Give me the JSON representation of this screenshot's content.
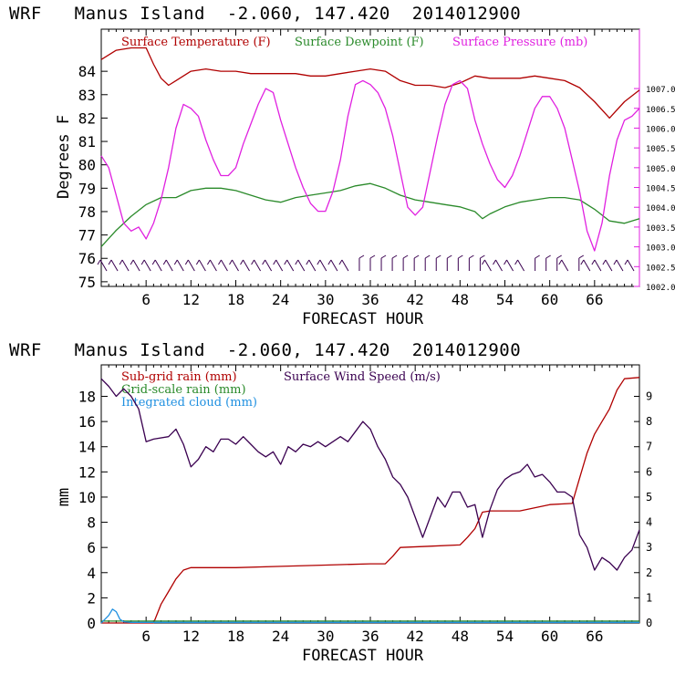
{
  "panel1": {
    "title": "WRF   Manus Island  -2.060, 147.420  2014012900",
    "xlabel": "FORECAST HOUR",
    "ylabel": "Degrees F",
    "legend": {
      "temperature": "Surface Temperature (F)",
      "dewpoint": "Surface Dewpoint (F)",
      "pressure": "Surface Pressure (mb)"
    }
  },
  "panel2": {
    "title": "WRF   Manus Island  -2.060, 147.420  2014012900",
    "xlabel": "FORECAST HOUR",
    "ylabel": "mm",
    "legend": {
      "subgrid": "Sub-grid rain (mm)",
      "gridscale": "Grid-scale rain (mm)",
      "cloud": "Integrated cloud (mm)",
      "wind": "Surface Wind Speed (m/s)"
    }
  },
  "colors": {
    "temperature": "#b00000",
    "dewpoint": "#2a8a2a",
    "pressure": "#e020e0",
    "wind_barbs": "#3a0050",
    "subgrid": "#b00000",
    "gridscale": "#2a8a2a",
    "cloud": "#2090e0",
    "wind": "#3a0050"
  },
  "chart_data": [
    {
      "type": "line",
      "x_ticks": [
        6,
        12,
        18,
        24,
        30,
        36,
        42,
        48,
        54,
        60,
        66
      ],
      "xlim": [
        0,
        72
      ],
      "y_left_ticks": [
        75,
        76,
        77,
        78,
        79,
        80,
        81,
        82,
        83,
        84
      ],
      "ylim_left": [
        74.8,
        85.8
      ],
      "y_right_ticks": [
        "1002.0",
        "1002.5",
        "1003.0",
        "1003.5",
        "1004.0",
        "1004.5",
        "1005.0",
        "1005.5",
        "1006.0",
        "1006.5",
        "1007.0"
      ],
      "ylim_right": [
        1002.0,
        1008.5
      ],
      "series": [
        {
          "name": "Surface Temperature (F)",
          "axis": "left",
          "x": [
            0,
            2,
            4,
            6,
            7,
            8,
            9,
            10,
            12,
            14,
            16,
            18,
            20,
            22,
            24,
            26,
            28,
            30,
            32,
            34,
            36,
            38,
            40,
            42,
            44,
            46,
            48,
            50,
            52,
            54,
            56,
            58,
            60,
            62,
            64,
            66,
            68,
            70,
            72
          ],
          "y": [
            84.5,
            84.9,
            85.0,
            85.0,
            84.3,
            83.7,
            83.4,
            83.6,
            84.0,
            84.1,
            84.0,
            84.0,
            83.9,
            83.9,
            83.9,
            83.9,
            83.8,
            83.8,
            83.9,
            84.0,
            84.1,
            84.0,
            83.6,
            83.4,
            83.4,
            83.3,
            83.5,
            83.8,
            83.7,
            83.7,
            83.7,
            83.8,
            83.7,
            83.6,
            83.3,
            82.7,
            82.0,
            82.7,
            83.2
          ]
        },
        {
          "name": "Surface Dewpoint (F)",
          "axis": "left",
          "x": [
            0,
            2,
            4,
            6,
            8,
            10,
            12,
            14,
            16,
            18,
            20,
            22,
            24,
            26,
            28,
            30,
            32,
            34,
            36,
            38,
            40,
            42,
            44,
            46,
            48,
            50,
            51,
            52,
            54,
            56,
            58,
            60,
            62,
            64,
            66,
            68,
            70,
            72
          ],
          "y": [
            76.5,
            77.2,
            77.8,
            78.3,
            78.6,
            78.6,
            78.9,
            79.0,
            79.0,
            78.9,
            78.7,
            78.5,
            78.4,
            78.6,
            78.7,
            78.8,
            78.9,
            79.1,
            79.2,
            79.0,
            78.7,
            78.5,
            78.4,
            78.3,
            78.2,
            78.0,
            77.7,
            77.9,
            78.2,
            78.4,
            78.5,
            78.6,
            78.6,
            78.5,
            78.1,
            77.6,
            77.5,
            77.7
          ]
        },
        {
          "name": "Surface Pressure (mb)",
          "axis": "right",
          "x": [
            0,
            1,
            2,
            3,
            4,
            5,
            6,
            7,
            8,
            9,
            10,
            11,
            12,
            13,
            14,
            15,
            16,
            17,
            18,
            19,
            20,
            21,
            22,
            23,
            24,
            25,
            26,
            27,
            28,
            29,
            30,
            31,
            32,
            33,
            34,
            35,
            36,
            37,
            38,
            39,
            40,
            41,
            42,
            43,
            44,
            45,
            46,
            47,
            48,
            49,
            50,
            51,
            52,
            53,
            54,
            55,
            56,
            57,
            58,
            59,
            60,
            61,
            62,
            63,
            64,
            65,
            66,
            67,
            68,
            69,
            70,
            71,
            72
          ],
          "y": [
            1005.3,
            1005.0,
            1004.3,
            1003.6,
            1003.4,
            1003.5,
            1003.2,
            1003.6,
            1004.2,
            1005.0,
            1006.0,
            1006.6,
            1006.5,
            1006.3,
            1005.7,
            1005.2,
            1004.8,
            1004.8,
            1005.0,
            1005.6,
            1006.1,
            1006.6,
            1007.0,
            1006.9,
            1006.2,
            1005.6,
            1005.0,
            1004.5,
            1004.1,
            1003.9,
            1003.9,
            1004.4,
            1005.2,
            1006.3,
            1007.1,
            1007.2,
            1007.1,
            1006.9,
            1006.5,
            1005.8,
            1004.9,
            1004.0,
            1003.8,
            1004.0,
            1004.9,
            1005.8,
            1006.6,
            1007.1,
            1007.2,
            1007.0,
            1006.2,
            1005.6,
            1005.1,
            1004.7,
            1004.5,
            1004.8,
            1005.3,
            1005.9,
            1006.5,
            1006.8,
            1006.8,
            1006.5,
            1006.0,
            1005.2,
            1004.4,
            1003.4,
            1002.9,
            1003.6,
            1004.8,
            1005.7,
            1006.2,
            1006.3,
            1006.5
          ]
        }
      ]
    },
    {
      "type": "line",
      "x_ticks": [
        6,
        12,
        18,
        24,
        30,
        36,
        42,
        48,
        54,
        60,
        66
      ],
      "xlim": [
        0,
        72
      ],
      "y_left_ticks": [
        0,
        2,
        4,
        6,
        8,
        10,
        12,
        14,
        16,
        18
      ],
      "ylim_left": [
        0,
        20.5
      ],
      "y_right_ticks": [
        0,
        1,
        2,
        3,
        4,
        5,
        6,
        7,
        8,
        9
      ],
      "ylim_right": [
        0,
        10.25
      ],
      "series": [
        {
          "name": "Sub-grid rain (mm)",
          "axis": "left",
          "x": [
            0,
            7,
            8,
            9,
            10,
            11,
            12,
            18,
            24,
            30,
            36,
            38,
            39,
            40,
            44,
            48,
            49,
            50,
            51,
            52,
            56,
            60,
            63,
            64,
            65,
            66,
            67,
            68,
            69,
            70,
            72
          ],
          "y": [
            0,
            0,
            1.5,
            2.5,
            3.5,
            4.2,
            4.4,
            4.4,
            4.5,
            4.6,
            4.7,
            4.7,
            5.3,
            6.0,
            6.1,
            6.2,
            6.8,
            7.5,
            8.8,
            8.9,
            8.9,
            9.4,
            9.5,
            11.5,
            13.5,
            15.0,
            16.0,
            17.0,
            18.5,
            19.4,
            19.5
          ]
        },
        {
          "name": "Grid-scale rain (mm)",
          "axis": "left",
          "x": [
            0,
            72
          ],
          "y": [
            0.15,
            0.15
          ]
        },
        {
          "name": "Integrated cloud (mm)",
          "axis": "left",
          "x": [
            0,
            1,
            1.5,
            2,
            2.5,
            3,
            4,
            72
          ],
          "y": [
            0,
            0.6,
            1.1,
            0.9,
            0.3,
            0.1,
            0.05,
            0.05
          ]
        },
        {
          "name": "Surface Wind Speed (m/s)",
          "axis": "right",
          "x": [
            0,
            1,
            2,
            3,
            4,
            5,
            6,
            7,
            9,
            10,
            11,
            12,
            13,
            14,
            15,
            16,
            17,
            18,
            19,
            20,
            21,
            22,
            23,
            24,
            25,
            26,
            27,
            28,
            29,
            30,
            31,
            32,
            33,
            34,
            35,
            36,
            37,
            38,
            39,
            40,
            41,
            42,
            43,
            44,
            45,
            46,
            47,
            48,
            49,
            50,
            51,
            52,
            53,
            54,
            55,
            56,
            57,
            58,
            59,
            60,
            61,
            62,
            63,
            64,
            65,
            66,
            67,
            68,
            69,
            70,
            71,
            72
          ],
          "y": [
            9.7,
            9.4,
            9.0,
            9.3,
            9.0,
            8.5,
            7.2,
            7.3,
            7.4,
            7.7,
            7.1,
            6.2,
            6.5,
            7.0,
            6.8,
            7.3,
            7.3,
            7.1,
            7.4,
            7.1,
            6.8,
            6.6,
            6.8,
            6.3,
            7.0,
            6.8,
            7.1,
            7.0,
            7.2,
            7.0,
            7.2,
            7.4,
            7.2,
            7.6,
            8.0,
            7.7,
            7.0,
            6.5,
            5.8,
            5.5,
            5.0,
            4.2,
            3.4,
            4.2,
            5.0,
            4.6,
            5.2,
            5.2,
            4.6,
            4.7,
            3.4,
            4.5,
            5.3,
            5.7,
            5.9,
            6.0,
            6.3,
            5.8,
            5.9,
            5.6,
            5.2,
            5.2,
            5.0,
            3.5,
            3.0,
            2.1,
            2.6,
            2.4,
            2.1,
            2.6,
            2.9,
            3.7
          ]
        }
      ]
    }
  ]
}
